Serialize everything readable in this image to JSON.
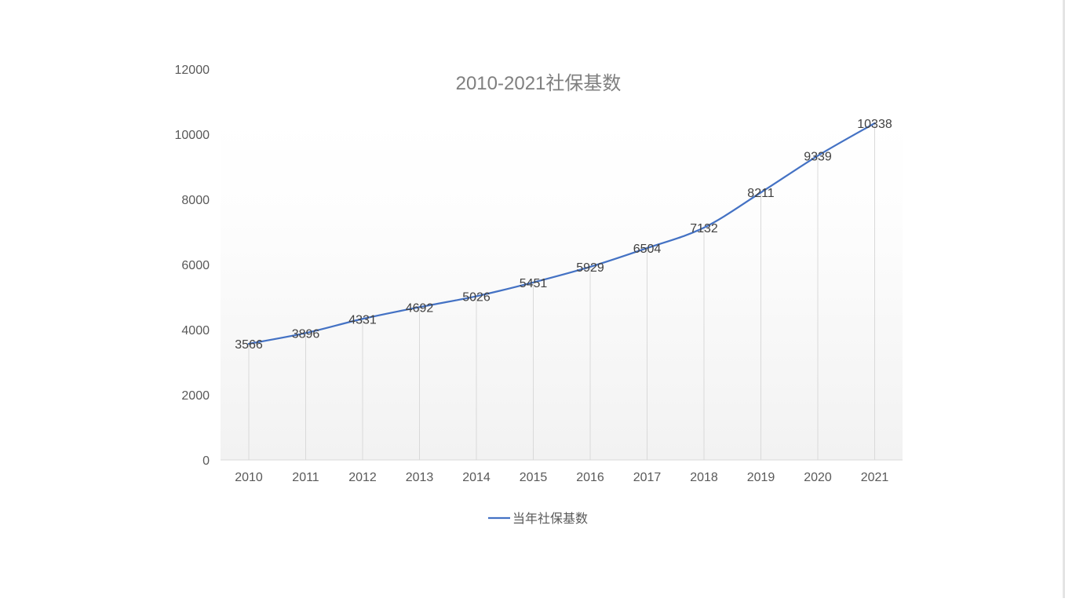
{
  "chart_data": {
    "type": "line",
    "title": "2010-2021社保基数",
    "xlabel": "",
    "ylabel": "",
    "categories": [
      "2010",
      "2011",
      "2012",
      "2013",
      "2014",
      "2015",
      "2016",
      "2017",
      "2018",
      "2019",
      "2020",
      "2021"
    ],
    "series": [
      {
        "name": "当年社保基数",
        "values": [
          3566,
          3896,
          4331,
          4692,
          5026,
          5451,
          5929,
          6504,
          7132,
          8211,
          9339,
          10338
        ],
        "color": "#4472c4"
      }
    ],
    "ylim": [
      0,
      12000
    ],
    "yticks": [
      "0",
      "2000",
      "4000",
      "6000",
      "8000",
      "10000",
      "12000"
    ],
    "grid": "vertical drop lines",
    "legend": "bottom",
    "data_labels": true
  }
}
